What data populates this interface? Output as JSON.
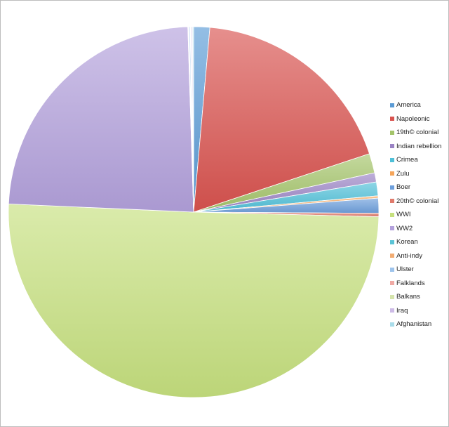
{
  "chart_data": {
    "type": "pie",
    "title": "",
    "legend_position": "right",
    "start_angle_deg": 0,
    "direction": "clockwise",
    "slices": [
      {
        "name": "America",
        "value": 1.4,
        "color": "#5b9bd5"
      },
      {
        "name": "Napoleonic",
        "value": 18.5,
        "color": "#d9534f"
      },
      {
        "name": "19th© colonial",
        "value": 1.7,
        "color": "#a4c46a"
      },
      {
        "name": "Indian rebellion",
        "value": 0.8,
        "color": "#9a83c4"
      },
      {
        "name": "Crimea",
        "value": 1.2,
        "color": "#4fc0d8"
      },
      {
        "name": "Zulu",
        "value": 0.2,
        "color": "#f5a55a"
      },
      {
        "name": "Boer",
        "value": 1.3,
        "color": "#6d9fdc"
      },
      {
        "name": "20th© colonial",
        "value": 0.3,
        "color": "#e07b6c"
      },
      {
        "name": "WWI",
        "value": 50.3,
        "color": "#c6e07e"
      },
      {
        "name": "WW2",
        "value": 23.8,
        "color": "#b3a1dc"
      },
      {
        "name": "Korean",
        "value": 0.05,
        "color": "#5bc4d6"
      },
      {
        "name": "Anti-indy",
        "value": 0.05,
        "color": "#f2ac72"
      },
      {
        "name": "Ulster",
        "value": 0.1,
        "color": "#9ec4ec"
      },
      {
        "name": "Falklands",
        "value": 0.05,
        "color": "#f0aaa4"
      },
      {
        "name": "Balkans",
        "value": 0.05,
        "color": "#d5e4ac"
      },
      {
        "name": "Iraq",
        "value": 0.1,
        "color": "#cdbbe6"
      },
      {
        "name": "Afghanistan",
        "value": 0.1,
        "color": "#a9dcea"
      }
    ]
  }
}
